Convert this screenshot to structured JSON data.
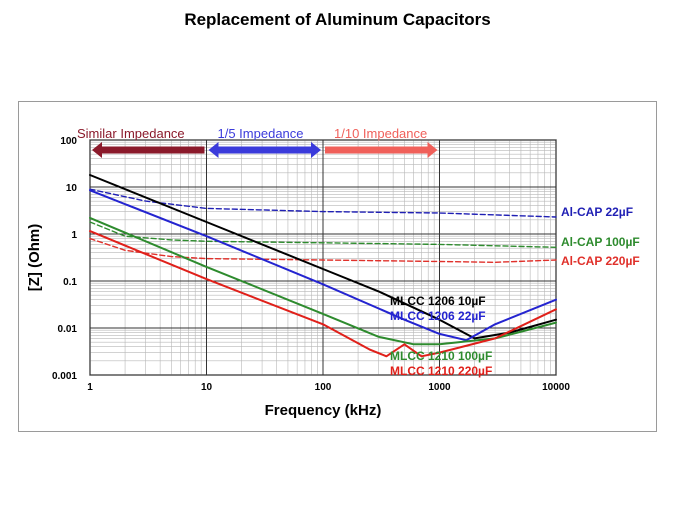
{
  "slide": {
    "title": "Replacement of Aluminum Capacitors"
  },
  "chart_data": {
    "type": "line",
    "title": "",
    "xlabel": "Frequency  (kHz)",
    "ylabel": "[Z] (Ohm)",
    "xscale": "log",
    "yscale": "log",
    "xlim": [
      1,
      10000
    ],
    "ylim": [
      0.001,
      100
    ],
    "x_ticks": [
      {
        "value": 1,
        "label": "1"
      },
      {
        "value": 10,
        "label": "10"
      },
      {
        "value": 100,
        "label": "100"
      },
      {
        "value": 1000,
        "label": "1000"
      },
      {
        "value": 10000,
        "label": "10000"
      }
    ],
    "y_ticks": [
      {
        "value": 100,
        "label": "100"
      },
      {
        "value": 10,
        "label": "10"
      },
      {
        "value": 1,
        "label": "1"
      },
      {
        "value": 0.1,
        "label": "0.1"
      },
      {
        "value": 0.01,
        "label": "0.01"
      },
      {
        "value": 0.001,
        "label": "0.001"
      }
    ],
    "grid": true,
    "ranges": [
      {
        "label": "Similar Impedance",
        "color": "#8b1a2b",
        "direction": "left",
        "x_from": 1,
        "x_to": 10
      },
      {
        "label": "1/5 Impedance",
        "color": "#3b3bdb",
        "direction": "both",
        "x_from": 10,
        "x_to": 100
      },
      {
        "label": "1/10 Impedance",
        "color": "#f0605a",
        "direction": "right",
        "x_from": 100,
        "x_to": 1000
      }
    ],
    "series": [
      {
        "name": "Al-CAP 22µF",
        "color": "#1f1fb4",
        "dashed": true,
        "points": [
          [
            1,
            9
          ],
          [
            3,
            5
          ],
          [
            10,
            3.5
          ],
          [
            100,
            3.0
          ],
          [
            1000,
            2.8
          ],
          [
            10000,
            2.3
          ]
        ]
      },
      {
        "name": "Al-CAP 100µF",
        "color": "#2e8b2e",
        "dashed": true,
        "points": [
          [
            1,
            1.8
          ],
          [
            2,
            0.9
          ],
          [
            5,
            0.75
          ],
          [
            10,
            0.7
          ],
          [
            100,
            0.65
          ],
          [
            1000,
            0.6
          ],
          [
            10000,
            0.52
          ]
        ]
      },
      {
        "name": "Al-CAP 220µF",
        "color": "#e0302a",
        "dashed": true,
        "points": [
          [
            1,
            0.8
          ],
          [
            2,
            0.45
          ],
          [
            5,
            0.33
          ],
          [
            10,
            0.3
          ],
          [
            100,
            0.28
          ],
          [
            1000,
            0.26
          ],
          [
            3000,
            0.25
          ],
          [
            10000,
            0.28
          ]
        ]
      },
      {
        "name": "MLCC 1206   10µF",
        "color": "#000000",
        "dashed": false,
        "points": [
          [
            1,
            18
          ],
          [
            10,
            1.8
          ],
          [
            100,
            0.18
          ],
          [
            300,
            0.06
          ],
          [
            1000,
            0.015
          ],
          [
            2000,
            0.006
          ],
          [
            4000,
            0.008
          ],
          [
            10000,
            0.015
          ]
        ]
      },
      {
        "name": "MLCC 1206   22µF",
        "color": "#2424d0",
        "dashed": false,
        "points": [
          [
            1,
            8.5
          ],
          [
            10,
            0.9
          ],
          [
            100,
            0.085
          ],
          [
            500,
            0.015
          ],
          [
            1000,
            0.0075
          ],
          [
            1700,
            0.0055
          ],
          [
            3000,
            0.012
          ],
          [
            10000,
            0.04
          ]
        ]
      },
      {
        "name": "MLCC 1210 100µF",
        "color": "#2e8b2e",
        "dashed": false,
        "points": [
          [
            1,
            2.2
          ],
          [
            10,
            0.2
          ],
          [
            100,
            0.02
          ],
          [
            300,
            0.0065
          ],
          [
            600,
            0.0045
          ],
          [
            1000,
            0.0045
          ],
          [
            3000,
            0.006
          ],
          [
            10000,
            0.013
          ]
        ]
      },
      {
        "name": "MLCC 1210 220µF",
        "color": "#e0201a",
        "dashed": false,
        "points": [
          [
            1,
            1.15
          ],
          [
            10,
            0.11
          ],
          [
            100,
            0.012
          ],
          [
            250,
            0.0035
          ],
          [
            350,
            0.0025
          ],
          [
            500,
            0.0045
          ],
          [
            700,
            0.0025
          ],
          [
            1000,
            0.003
          ],
          [
            3000,
            0.006
          ],
          [
            10000,
            0.025
          ]
        ]
      }
    ],
    "annotations": [
      {
        "text": "Al-CAP 22µF",
        "color": "#1f1fb4"
      },
      {
        "text": "Al-CAP 100µF",
        "color": "#2e8b2e"
      },
      {
        "text": "Al-CAP 220µF",
        "color": "#e0302a"
      },
      {
        "text": "MLCC 1206   10µF",
        "color": "#000000"
      },
      {
        "text": "MLCC 1206   22µF",
        "color": "#2424d0"
      },
      {
        "text": "MLCC 1210 100µF",
        "color": "#2e8b2e"
      },
      {
        "text": "MLCC 1210 220µF",
        "color": "#e0201a"
      }
    ]
  }
}
